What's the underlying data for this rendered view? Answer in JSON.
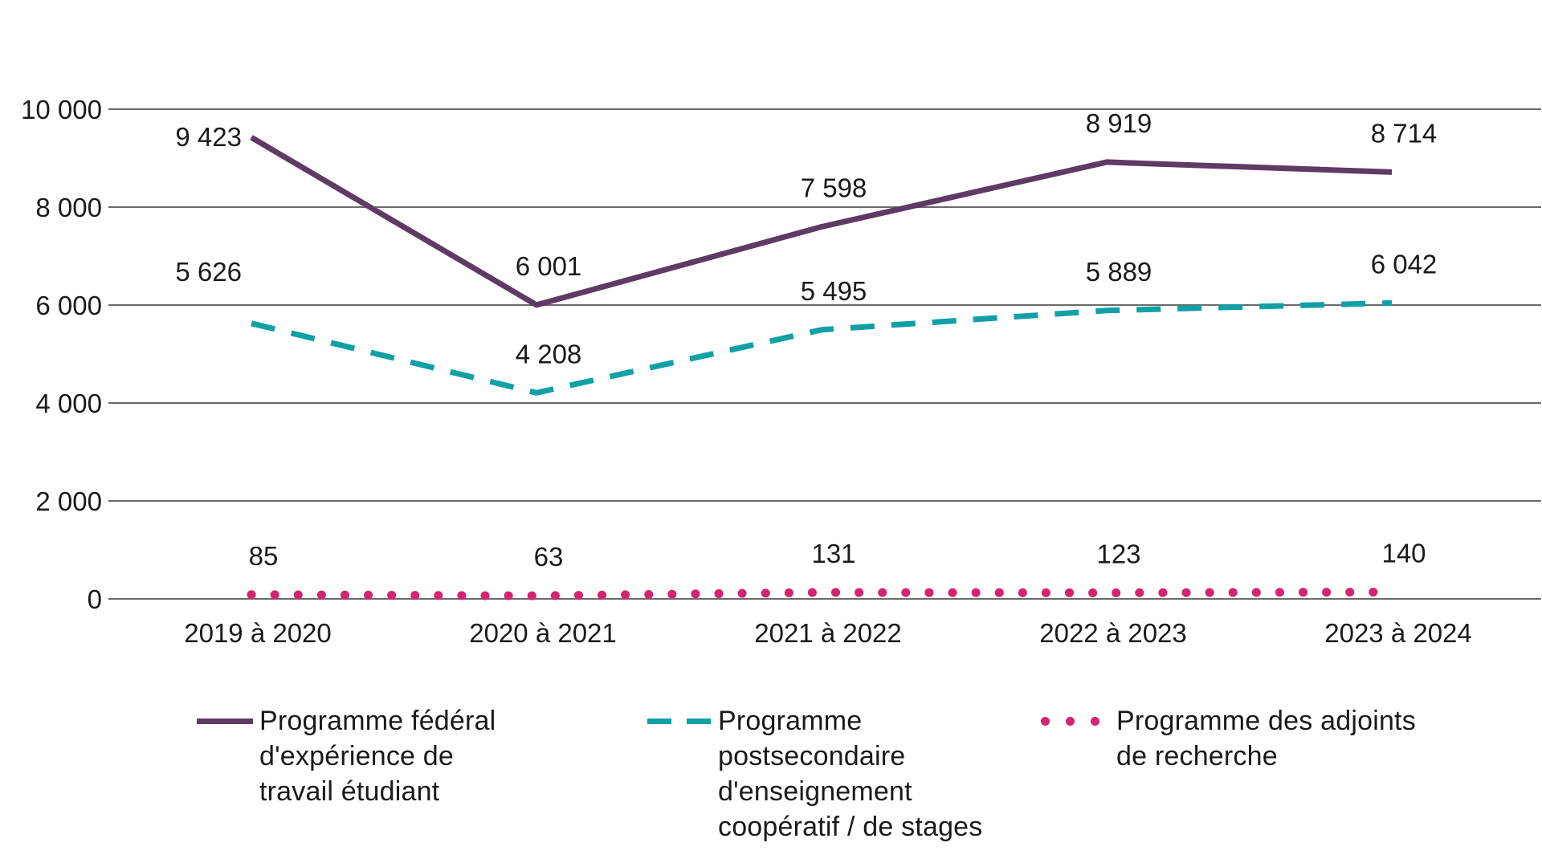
{
  "chart_data": {
    "type": "line",
    "title": "",
    "xlabel": "",
    "ylabel": "",
    "categories": [
      "2019 à 2020",
      "2020 à 2021",
      "2021 à 2022",
      "2022 à 2023",
      "2023 à 2024"
    ],
    "y_axis": {
      "min": 0,
      "max": 10000,
      "step": 2000,
      "tick_labels": [
        "0",
        "2 000",
        "4 000",
        "6 000",
        "8 000",
        "10 000"
      ]
    },
    "grid": true,
    "legend_position": "bottom",
    "series": [
      {
        "name": "Programme fédéral d'expérience de travail étudiant",
        "color": "#5E3A64",
        "style": "solid",
        "values": [
          9423,
          6001,
          7598,
          8919,
          8714
        ],
        "value_labels": [
          "9 423",
          "6 001",
          "7 598",
          "8 919",
          "8 714"
        ],
        "label_position": [
          "left",
          "above",
          "above",
          "above",
          "above"
        ]
      },
      {
        "name": "Programme postsecondaire d'enseignement coopératif / de stages",
        "color": "#10A0A6",
        "style": "dashed",
        "values": [
          5626,
          4208,
          5495,
          5889,
          6042
        ],
        "value_labels": [
          "5 626",
          "4 208",
          "5 495",
          "5 889",
          "6 042"
        ],
        "label_position": [
          "left-above",
          "above",
          "above",
          "above",
          "above"
        ]
      },
      {
        "name": "Programme des adjoints de recherche",
        "color": "#D4246E",
        "style": "dotted",
        "values": [
          85,
          63,
          131,
          123,
          140
        ],
        "value_labels": [
          "85",
          "63",
          "131",
          "123",
          "140"
        ],
        "label_position": [
          "above",
          "above",
          "above",
          "above",
          "above"
        ]
      }
    ],
    "colors": {
      "gridline": "#6A6A6A",
      "text": "#1A1A1A"
    }
  }
}
